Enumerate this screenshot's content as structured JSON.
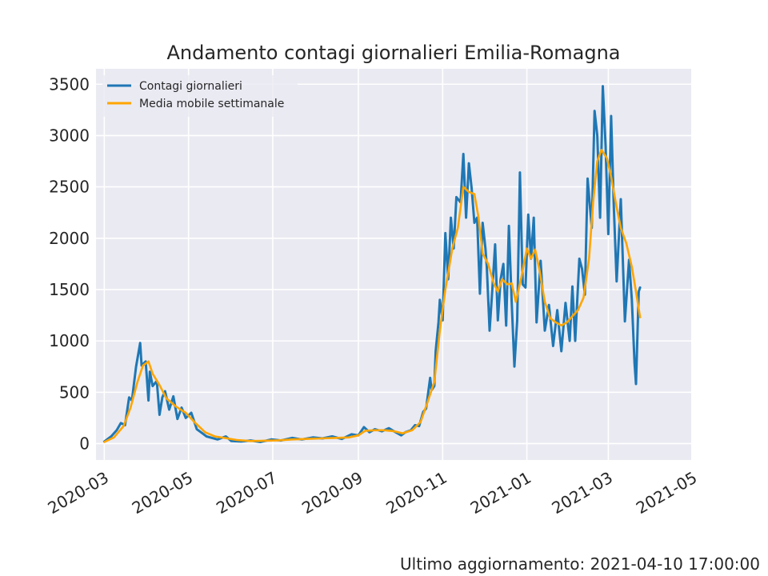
{
  "chart_data": {
    "type": "line",
    "title": "Andamento contagi giornalieri Emilia-Romagna",
    "xlabel": "",
    "ylabel": "",
    "x_range": [
      "2020-02-24",
      "2021-04-30"
    ],
    "ylim": [
      -160,
      3650
    ],
    "x_tick_labels": [
      "2020-03",
      "2020-05",
      "2020-07",
      "2020-09",
      "2020-11",
      "2021-01",
      "2021-03",
      "2021-05"
    ],
    "y_ticks": [
      0,
      500,
      1000,
      1500,
      2000,
      2500,
      3000,
      3500
    ],
    "grid": true,
    "legend_position": "top-left",
    "series": [
      {
        "name": "Contagi giornalieri",
        "color": "#1f77b4",
        "points": [
          [
            "2020-03-01",
            20
          ],
          [
            "2020-03-06",
            70
          ],
          [
            "2020-03-10",
            130
          ],
          [
            "2020-03-13",
            200
          ],
          [
            "2020-03-16",
            180
          ],
          [
            "2020-03-19",
            450
          ],
          [
            "2020-03-21",
            420
          ],
          [
            "2020-03-24",
            750
          ],
          [
            "2020-03-27",
            980
          ],
          [
            "2020-03-28",
            760
          ],
          [
            "2020-03-31",
            800
          ],
          [
            "2020-04-02",
            420
          ],
          [
            "2020-04-03",
            700
          ],
          [
            "2020-04-05",
            560
          ],
          [
            "2020-04-08",
            610
          ],
          [
            "2020-04-10",
            280
          ],
          [
            "2020-04-12",
            450
          ],
          [
            "2020-04-14",
            510
          ],
          [
            "2020-04-17",
            330
          ],
          [
            "2020-04-20",
            460
          ],
          [
            "2020-04-23",
            240
          ],
          [
            "2020-04-26",
            350
          ],
          [
            "2020-04-29",
            250
          ],
          [
            "2020-05-03",
            300
          ],
          [
            "2020-05-07",
            140
          ],
          [
            "2020-05-10",
            110
          ],
          [
            "2020-05-14",
            70
          ],
          [
            "2020-05-18",
            55
          ],
          [
            "2020-05-22",
            40
          ],
          [
            "2020-05-28",
            70
          ],
          [
            "2020-06-01",
            25
          ],
          [
            "2020-06-08",
            20
          ],
          [
            "2020-06-15",
            30
          ],
          [
            "2020-06-22",
            15
          ],
          [
            "2020-06-30",
            40
          ],
          [
            "2020-07-07",
            30
          ],
          [
            "2020-07-15",
            55
          ],
          [
            "2020-07-22",
            40
          ],
          [
            "2020-07-30",
            60
          ],
          [
            "2020-08-06",
            50
          ],
          [
            "2020-08-13",
            70
          ],
          [
            "2020-08-20",
            45
          ],
          [
            "2020-08-27",
            90
          ],
          [
            "2020-09-01",
            80
          ],
          [
            "2020-09-05",
            160
          ],
          [
            "2020-09-09",
            110
          ],
          [
            "2020-09-13",
            140
          ],
          [
            "2020-09-18",
            120
          ],
          [
            "2020-09-23",
            150
          ],
          [
            "2020-09-28",
            110
          ],
          [
            "2020-10-02",
            80
          ],
          [
            "2020-10-05",
            110
          ],
          [
            "2020-10-09",
            130
          ],
          [
            "2020-10-12",
            180
          ],
          [
            "2020-10-15",
            170
          ],
          [
            "2020-10-18",
            310
          ],
          [
            "2020-10-20",
            340
          ],
          [
            "2020-10-23",
            640
          ],
          [
            "2020-10-24",
            520
          ],
          [
            "2020-10-26",
            560
          ],
          [
            "2020-10-27",
            900
          ],
          [
            "2020-10-29",
            1180
          ],
          [
            "2020-10-30",
            1400
          ],
          [
            "2020-11-01",
            1200
          ],
          [
            "2020-11-03",
            2050
          ],
          [
            "2020-11-05",
            1600
          ],
          [
            "2020-11-07",
            2200
          ],
          [
            "2020-11-09",
            1900
          ],
          [
            "2020-11-11",
            2400
          ],
          [
            "2020-11-14",
            2350
          ],
          [
            "2020-11-16",
            2820
          ],
          [
            "2020-11-18",
            2200
          ],
          [
            "2020-11-20",
            2730
          ],
          [
            "2020-11-22",
            2490
          ],
          [
            "2020-11-24",
            2150
          ],
          [
            "2020-11-26",
            2200
          ],
          [
            "2020-11-28",
            1460
          ],
          [
            "2020-11-30",
            2150
          ],
          [
            "2020-12-02",
            1900
          ],
          [
            "2020-12-03",
            1720
          ],
          [
            "2020-12-05",
            1100
          ],
          [
            "2020-12-07",
            1500
          ],
          [
            "2020-12-09",
            1940
          ],
          [
            "2020-12-11",
            1200
          ],
          [
            "2020-12-13",
            1600
          ],
          [
            "2020-12-15",
            1750
          ],
          [
            "2020-12-17",
            1150
          ],
          [
            "2020-12-19",
            2120
          ],
          [
            "2020-12-21",
            1380
          ],
          [
            "2020-12-23",
            750
          ],
          [
            "2020-12-25",
            1200
          ],
          [
            "2020-12-27",
            2640
          ],
          [
            "2020-12-29",
            1550
          ],
          [
            "2020-12-31",
            1520
          ],
          [
            "2021-01-02",
            2230
          ],
          [
            "2021-01-04",
            1800
          ],
          [
            "2021-01-06",
            2200
          ],
          [
            "2021-01-08",
            1180
          ],
          [
            "2021-01-11",
            1780
          ],
          [
            "2021-01-14",
            1100
          ],
          [
            "2021-01-17",
            1350
          ],
          [
            "2021-01-20",
            950
          ],
          [
            "2021-01-23",
            1300
          ],
          [
            "2021-01-26",
            900
          ],
          [
            "2021-01-29",
            1370
          ],
          [
            "2021-02-01",
            1000
          ],
          [
            "2021-02-03",
            1530
          ],
          [
            "2021-02-05",
            1000
          ],
          [
            "2021-02-08",
            1800
          ],
          [
            "2021-02-10",
            1700
          ],
          [
            "2021-02-12",
            1450
          ],
          [
            "2021-02-14",
            2580
          ],
          [
            "2021-02-17",
            2100
          ],
          [
            "2021-02-19",
            3240
          ],
          [
            "2021-02-21",
            3000
          ],
          [
            "2021-02-23",
            2200
          ],
          [
            "2021-02-25",
            3480
          ],
          [
            "2021-02-27",
            2900
          ],
          [
            "2021-03-01",
            2040
          ],
          [
            "2021-03-03",
            3190
          ],
          [
            "2021-03-05",
            2300
          ],
          [
            "2021-03-07",
            1580
          ],
          [
            "2021-03-10",
            2380
          ],
          [
            "2021-03-13",
            1190
          ],
          [
            "2021-03-16",
            1790
          ],
          [
            "2021-03-18",
            1400
          ],
          [
            "2021-03-20",
            780
          ],
          [
            "2021-03-21",
            580
          ],
          [
            "2021-03-23",
            1480
          ],
          [
            "2021-03-24",
            1520
          ]
        ]
      },
      {
        "name": "Media mobile settimanale",
        "color": "#ffa500",
        "points": [
          [
            "2020-03-01",
            15
          ],
          [
            "2020-03-08",
            60
          ],
          [
            "2020-03-15",
            170
          ],
          [
            "2020-03-20",
            350
          ],
          [
            "2020-03-25",
            600
          ],
          [
            "2020-03-29",
            760
          ],
          [
            "2020-04-02",
            800
          ],
          [
            "2020-04-05",
            680
          ],
          [
            "2020-04-10",
            570
          ],
          [
            "2020-04-15",
            440
          ],
          [
            "2020-04-22",
            360
          ],
          [
            "2020-04-29",
            300
          ],
          [
            "2020-05-06",
            200
          ],
          [
            "2020-05-13",
            110
          ],
          [
            "2020-05-20",
            70
          ],
          [
            "2020-05-27",
            55
          ],
          [
            "2020-06-05",
            35
          ],
          [
            "2020-06-15",
            25
          ],
          [
            "2020-06-25",
            28
          ],
          [
            "2020-07-05",
            32
          ],
          [
            "2020-07-15",
            40
          ],
          [
            "2020-07-25",
            45
          ],
          [
            "2020-08-05",
            50
          ],
          [
            "2020-08-15",
            55
          ],
          [
            "2020-08-25",
            60
          ],
          [
            "2020-09-01",
            80
          ],
          [
            "2020-09-06",
            125
          ],
          [
            "2020-09-13",
            130
          ],
          [
            "2020-09-20",
            130
          ],
          [
            "2020-09-27",
            120
          ],
          [
            "2020-10-03",
            100
          ],
          [
            "2020-10-10",
            130
          ],
          [
            "2020-10-16",
            210
          ],
          [
            "2020-10-21",
            400
          ],
          [
            "2020-10-26",
            600
          ],
          [
            "2020-10-30",
            1100
          ],
          [
            "2020-11-03",
            1500
          ],
          [
            "2020-11-08",
            1900
          ],
          [
            "2020-11-12",
            2100
          ],
          [
            "2020-11-16",
            2500
          ],
          [
            "2020-11-20",
            2450
          ],
          [
            "2020-11-24",
            2430
          ],
          [
            "2020-11-27",
            2200
          ],
          [
            "2020-11-30",
            1850
          ],
          [
            "2020-12-04",
            1750
          ],
          [
            "2020-12-08",
            1560
          ],
          [
            "2020-12-11",
            1480
          ],
          [
            "2020-12-14",
            1600
          ],
          [
            "2020-12-18",
            1550
          ],
          [
            "2020-12-21",
            1560
          ],
          [
            "2020-12-24",
            1380
          ],
          [
            "2020-12-28",
            1620
          ],
          [
            "2021-01-01",
            1900
          ],
          [
            "2021-01-04",
            1800
          ],
          [
            "2021-01-07",
            1890
          ],
          [
            "2021-01-10",
            1700
          ],
          [
            "2021-01-14",
            1380
          ],
          [
            "2021-01-18",
            1220
          ],
          [
            "2021-01-22",
            1180
          ],
          [
            "2021-01-26",
            1150
          ],
          [
            "2021-01-30",
            1180
          ],
          [
            "2021-02-03",
            1240
          ],
          [
            "2021-02-07",
            1300
          ],
          [
            "2021-02-11",
            1420
          ],
          [
            "2021-02-15",
            1800
          ],
          [
            "2021-02-18",
            2350
          ],
          [
            "2021-02-21",
            2750
          ],
          [
            "2021-02-24",
            2860
          ],
          [
            "2021-02-28",
            2780
          ],
          [
            "2021-03-03",
            2600
          ],
          [
            "2021-03-07",
            2300
          ],
          [
            "2021-03-10",
            2100
          ],
          [
            "2021-03-14",
            1950
          ],
          [
            "2021-03-18",
            1720
          ],
          [
            "2021-03-21",
            1480
          ],
          [
            "2021-03-24",
            1230
          ]
        ]
      }
    ]
  },
  "footer": {
    "last_update": "Ultimo aggiornamento: 2021-04-10 17:00:00"
  }
}
